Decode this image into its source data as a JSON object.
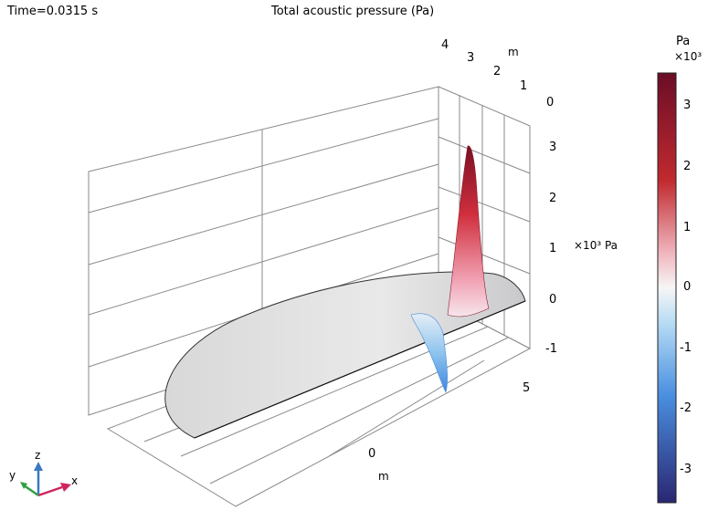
{
  "header": {
    "time_label": "Time=0.0315 s",
    "plot_title": "Total acoustic pressure (Pa)"
  },
  "chart_data": {
    "type": "surface-3d",
    "title": "Total acoustic pressure (Pa)",
    "time": "Time=0.0315 s",
    "z_axis": {
      "label": "×10³ Pa",
      "ticks": [
        "3",
        "2",
        "1",
        "0",
        "-1"
      ],
      "range": [
        -1.5,
        3.5
      ],
      "unit_scale": 1000
    },
    "y_axis": {
      "label": "m",
      "ticks": [
        "4",
        "3",
        "2",
        "1",
        "0"
      ]
    },
    "x_axis": {
      "label": "m",
      "ticks": [
        "0",
        "5"
      ]
    },
    "peak": {
      "max_kPa": 3.2,
      "min_kPa": -1.0,
      "x_m": 5.2,
      "y_m": 0
    },
    "grid": true,
    "colorbar": {
      "unit": "Pa",
      "scale": "×10³",
      "ticks": [
        "3",
        "2",
        "1",
        "0",
        "-1",
        "-2",
        "-3"
      ],
      "range": [
        -3.5,
        3.5
      ],
      "colors": {
        "max": "#6a0d26",
        "high": "#d43c3c",
        "mid": "#f4f4f4",
        "low": "#5aa8e6",
        "min": "#2b2a7a"
      }
    },
    "triad": {
      "x": "x",
      "y": "y",
      "z": "z"
    }
  },
  "triad_colors": {
    "x": "#d0245c",
    "y": "#2ea043",
    "z": "#3a78c2"
  }
}
